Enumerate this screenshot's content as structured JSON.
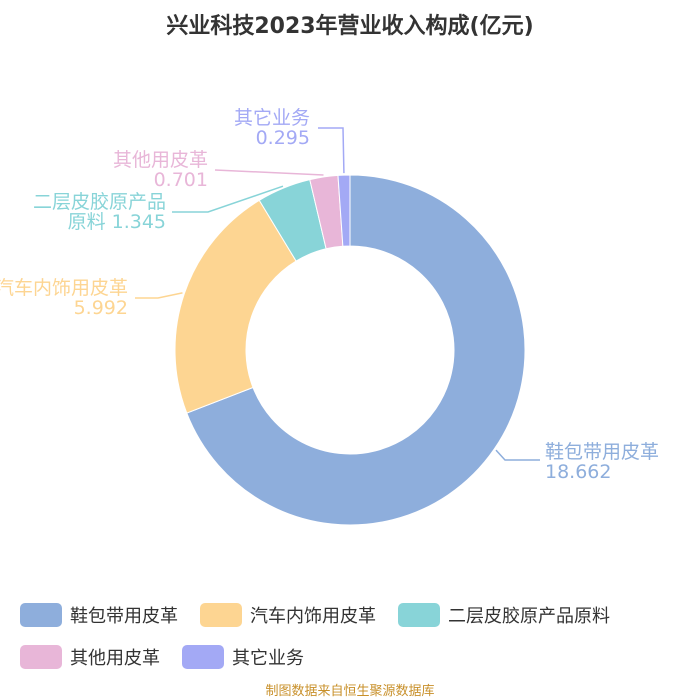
{
  "chart_data": {
    "type": "pie",
    "title": "兴业科技2023年营业收入构成(亿元)",
    "unit": "亿元",
    "series": [
      {
        "name": "鞋包带用皮革",
        "value": 18.662,
        "color": "#8eaedc",
        "label_lines": [
          "鞋包带用皮革",
          "18.662"
        ]
      },
      {
        "name": "汽车内饰用皮革",
        "value": 5.992,
        "color": "#fdd592",
        "label_lines": [
          "汽车内饰用皮革",
          "5.992"
        ]
      },
      {
        "name": "二层皮胶原产品原料",
        "value": 1.345,
        "color": "#88d4d8",
        "label_lines": [
          "二层皮胶原产品",
          "原料 1.345"
        ]
      },
      {
        "name": "其他用皮革",
        "value": 0.701,
        "color": "#e8b6d8",
        "label_lines": [
          "其他用皮革",
          "0.701"
        ]
      },
      {
        "name": "其它业务",
        "value": 0.295,
        "color": "#a3a9f5",
        "label_lines": [
          "其它业务",
          "0.295"
        ]
      }
    ],
    "legend_position": "bottom"
  },
  "source_note": "制图数据来自恒生聚源数据库"
}
